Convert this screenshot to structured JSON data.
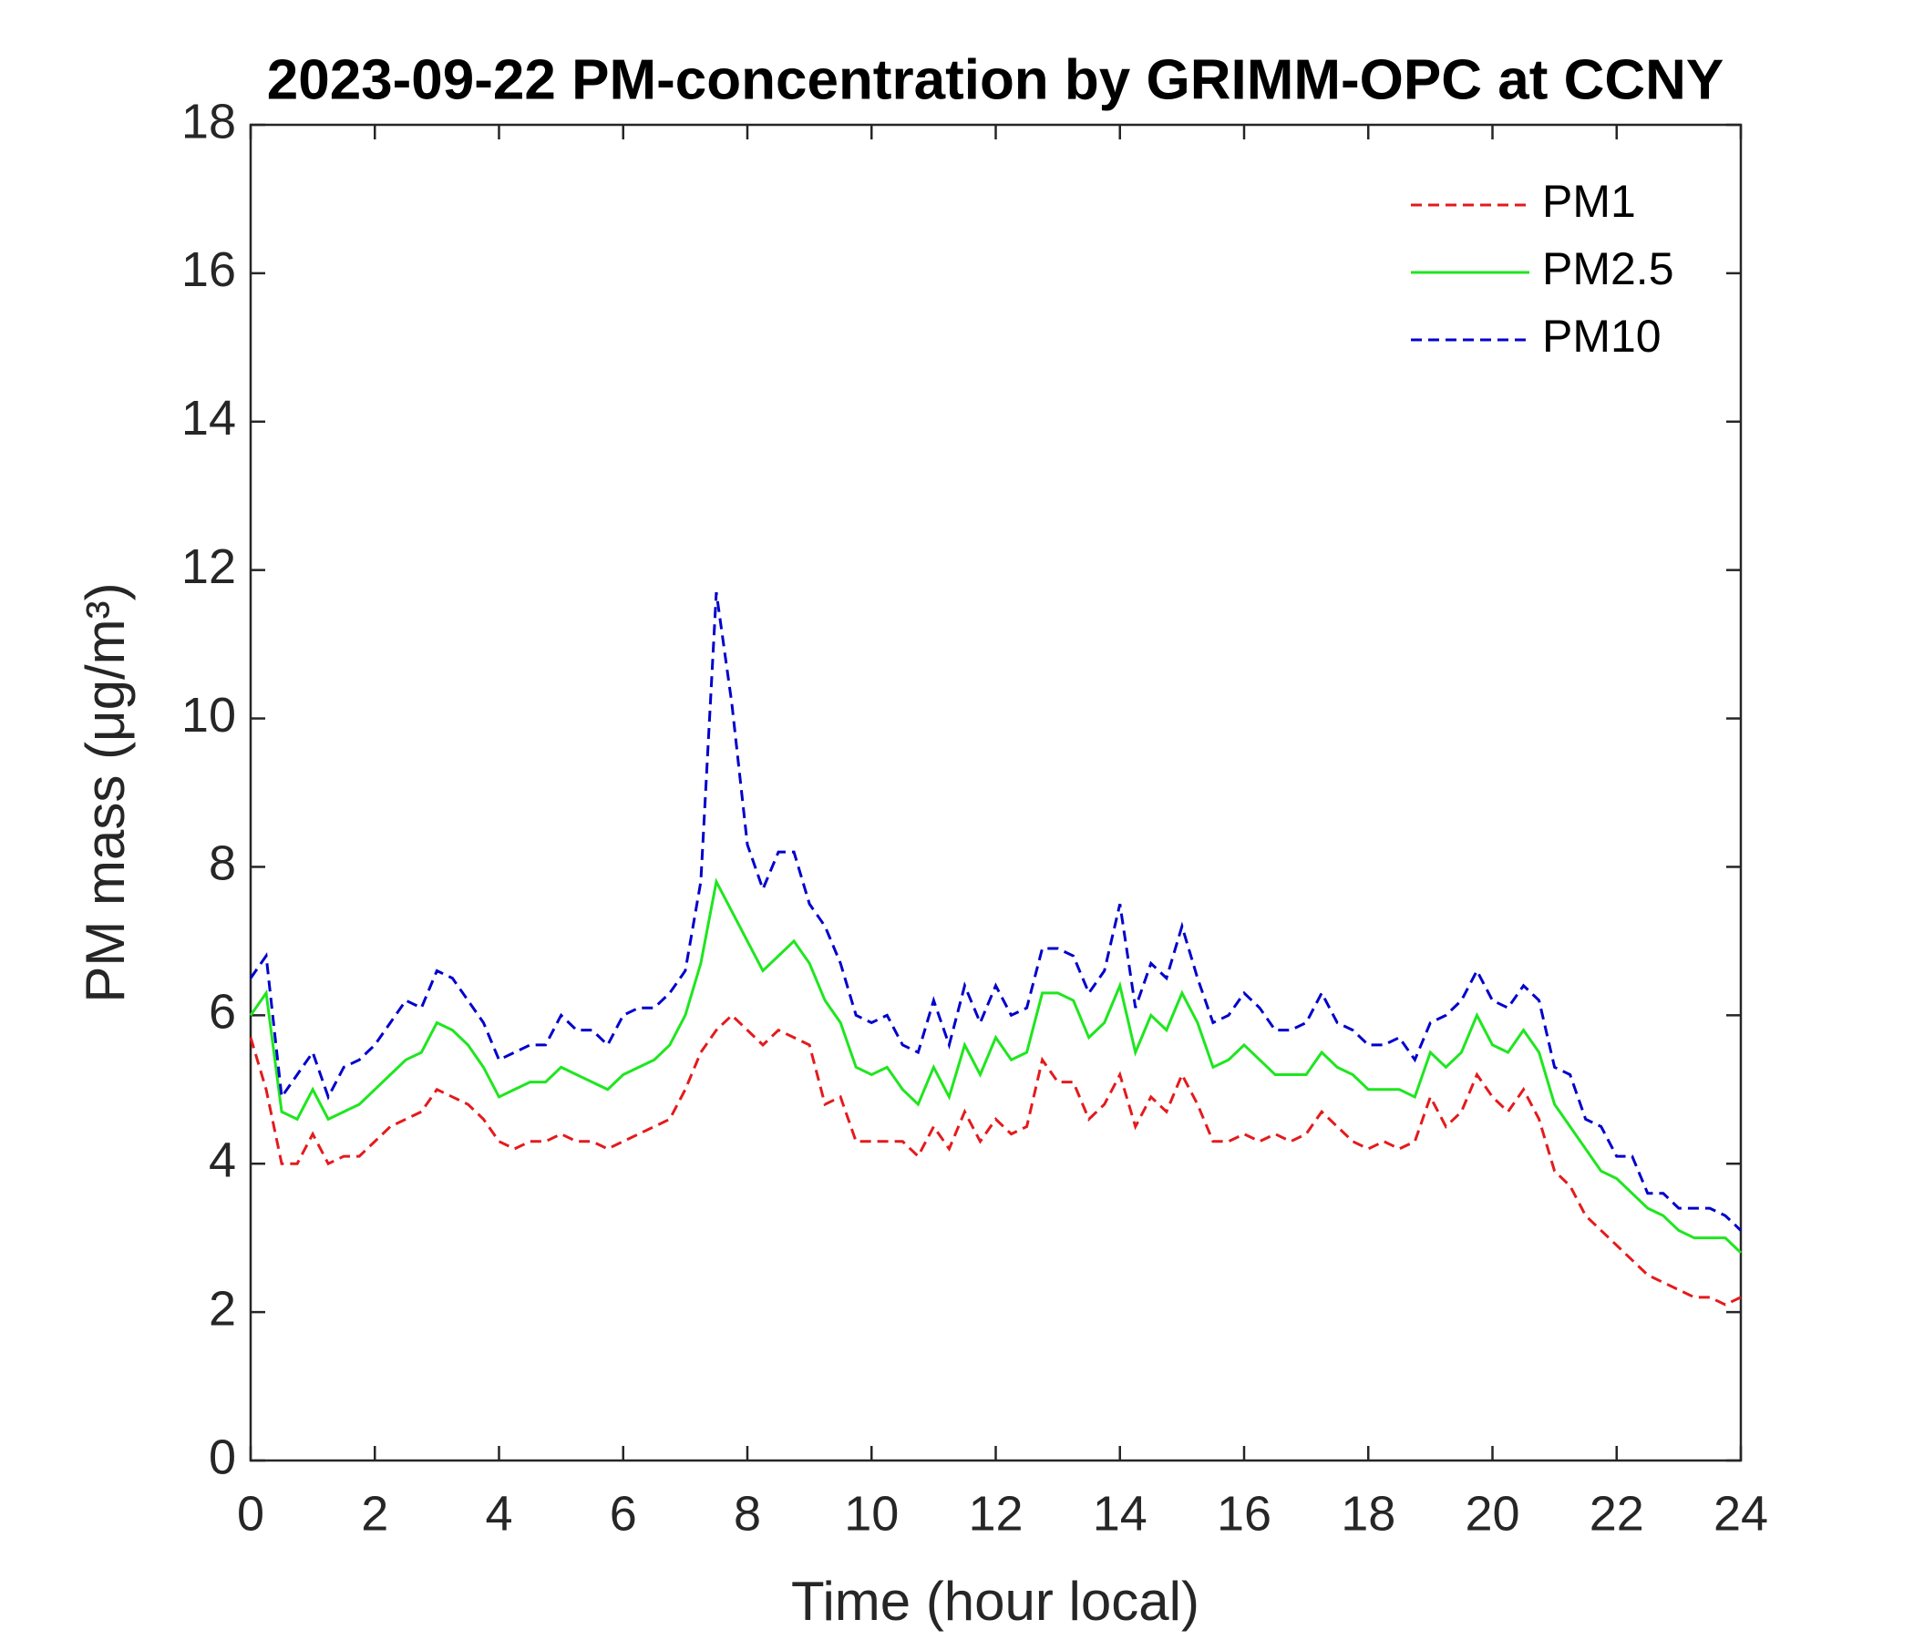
{
  "chart_data": {
    "type": "line",
    "title": "2023-09-22 PM-concentration by GRIMM-OPC at CCNY",
    "xlabel": "Time (hour local)",
    "ylabel": "PM mass (μg/m³)",
    "x": [
      0,
      0.25,
      0.5,
      0.75,
      1,
      1.25,
      1.5,
      1.75,
      2,
      2.25,
      2.5,
      2.75,
      3,
      3.25,
      3.5,
      3.75,
      4,
      4.25,
      4.5,
      4.75,
      5,
      5.25,
      5.5,
      5.75,
      6,
      6.25,
      6.5,
      6.75,
      7,
      7.25,
      7.5,
      7.75,
      8,
      8.25,
      8.5,
      8.75,
      9,
      9.25,
      9.5,
      9.75,
      10,
      10.25,
      10.5,
      10.75,
      11,
      11.25,
      11.5,
      11.75,
      12,
      12.25,
      12.5,
      12.75,
      13,
      13.25,
      13.5,
      13.75,
      14,
      14.25,
      14.5,
      14.75,
      15,
      15.25,
      15.5,
      15.75,
      16,
      16.25,
      16.5,
      16.75,
      17,
      17.25,
      17.5,
      17.75,
      18,
      18.25,
      18.5,
      18.75,
      19,
      19.25,
      19.5,
      19.75,
      20,
      20.25,
      20.5,
      20.75,
      21,
      21.25,
      21.5,
      21.75,
      22,
      22.25,
      22.5,
      22.75,
      23,
      23.25,
      23.5,
      23.75,
      24
    ],
    "series": [
      {
        "name": "PM1",
        "color": "#e41a1c",
        "linestyle": "dashed",
        "values": [
          5.7,
          5.0,
          4.0,
          4.0,
          4.4,
          4.0,
          4.1,
          4.1,
          4.3,
          4.5,
          4.6,
          4.7,
          5.0,
          4.9,
          4.8,
          4.6,
          4.3,
          4.2,
          4.3,
          4.3,
          4.4,
          4.3,
          4.3,
          4.2,
          4.3,
          4.4,
          4.5,
          4.6,
          5.0,
          5.5,
          5.8,
          6.0,
          5.8,
          5.6,
          5.8,
          5.7,
          5.6,
          4.8,
          4.9,
          4.3,
          4.3,
          4.3,
          4.3,
          4.1,
          4.5,
          4.2,
          4.7,
          4.3,
          4.6,
          4.4,
          4.5,
          5.4,
          5.1,
          5.1,
          4.6,
          4.8,
          5.2,
          4.5,
          4.9,
          4.7,
          5.2,
          4.8,
          4.3,
          4.3,
          4.4,
          4.3,
          4.4,
          4.3,
          4.4,
          4.7,
          4.5,
          4.3,
          4.2,
          4.3,
          4.2,
          4.3,
          4.9,
          4.5,
          4.7,
          5.2,
          4.9,
          4.7,
          5.0,
          4.6,
          3.9,
          3.7,
          3.3,
          3.1,
          2.9,
          2.7,
          2.5,
          2.4,
          2.3,
          2.2,
          2.2,
          2.1,
          2.2
        ]
      },
      {
        "name": "PM2.5",
        "color": "#1ee61e",
        "linestyle": "solid",
        "values": [
          6.0,
          6.3,
          4.7,
          4.6,
          5.0,
          4.6,
          4.7,
          4.8,
          5.0,
          5.2,
          5.4,
          5.5,
          5.9,
          5.8,
          5.6,
          5.3,
          4.9,
          5.0,
          5.1,
          5.1,
          5.3,
          5.2,
          5.1,
          5.0,
          5.2,
          5.3,
          5.4,
          5.6,
          6.0,
          6.7,
          7.8,
          7.4,
          7.0,
          6.6,
          6.8,
          7.0,
          6.7,
          6.2,
          5.9,
          5.3,
          5.2,
          5.3,
          5.0,
          4.8,
          5.3,
          4.9,
          5.6,
          5.2,
          5.7,
          5.4,
          5.5,
          6.3,
          6.3,
          6.2,
          5.7,
          5.9,
          6.4,
          5.5,
          6.0,
          5.8,
          6.3,
          5.9,
          5.3,
          5.4,
          5.6,
          5.4,
          5.2,
          5.2,
          5.2,
          5.5,
          5.3,
          5.2,
          5.0,
          5.0,
          5.0,
          4.9,
          5.5,
          5.3,
          5.5,
          6.0,
          5.6,
          5.5,
          5.8,
          5.5,
          4.8,
          4.5,
          4.2,
          3.9,
          3.8,
          3.6,
          3.4,
          3.3,
          3.1,
          3.0,
          3.0,
          3.0,
          2.8
        ]
      },
      {
        "name": "PM10",
        "color": "#0000cc",
        "linestyle": "dashed",
        "values": [
          6.5,
          6.8,
          4.9,
          5.2,
          5.5,
          4.9,
          5.3,
          5.4,
          5.6,
          5.9,
          6.2,
          6.1,
          6.6,
          6.5,
          6.2,
          5.9,
          5.4,
          5.5,
          5.6,
          5.6,
          6.0,
          5.8,
          5.8,
          5.6,
          6.0,
          6.1,
          6.1,
          6.3,
          6.6,
          7.8,
          11.7,
          10.2,
          8.3,
          7.7,
          8.2,
          8.2,
          7.5,
          7.2,
          6.7,
          6.0,
          5.9,
          6.0,
          5.6,
          5.5,
          6.2,
          5.6,
          6.4,
          5.9,
          6.4,
          6.0,
          6.1,
          6.9,
          6.9,
          6.8,
          6.3,
          6.6,
          7.5,
          6.1,
          6.7,
          6.5,
          7.2,
          6.5,
          5.9,
          6.0,
          6.3,
          6.1,
          5.8,
          5.8,
          5.9,
          6.3,
          5.9,
          5.8,
          5.6,
          5.6,
          5.7,
          5.4,
          5.9,
          6.0,
          6.2,
          6.6,
          6.2,
          6.1,
          6.4,
          6.2,
          5.3,
          5.2,
          4.6,
          4.5,
          4.1,
          4.1,
          3.6,
          3.6,
          3.4,
          3.4,
          3.4,
          3.3,
          3.1
        ]
      }
    ],
    "xlim": [
      0,
      24
    ],
    "xticks": [
      0,
      2,
      4,
      6,
      8,
      10,
      12,
      14,
      16,
      18,
      20,
      22,
      24
    ],
    "ylim": [
      0,
      18
    ],
    "yticks": [
      0,
      2,
      4,
      6,
      8,
      10,
      12,
      14,
      16,
      18
    ],
    "grid": false,
    "legend": "upper right"
  }
}
